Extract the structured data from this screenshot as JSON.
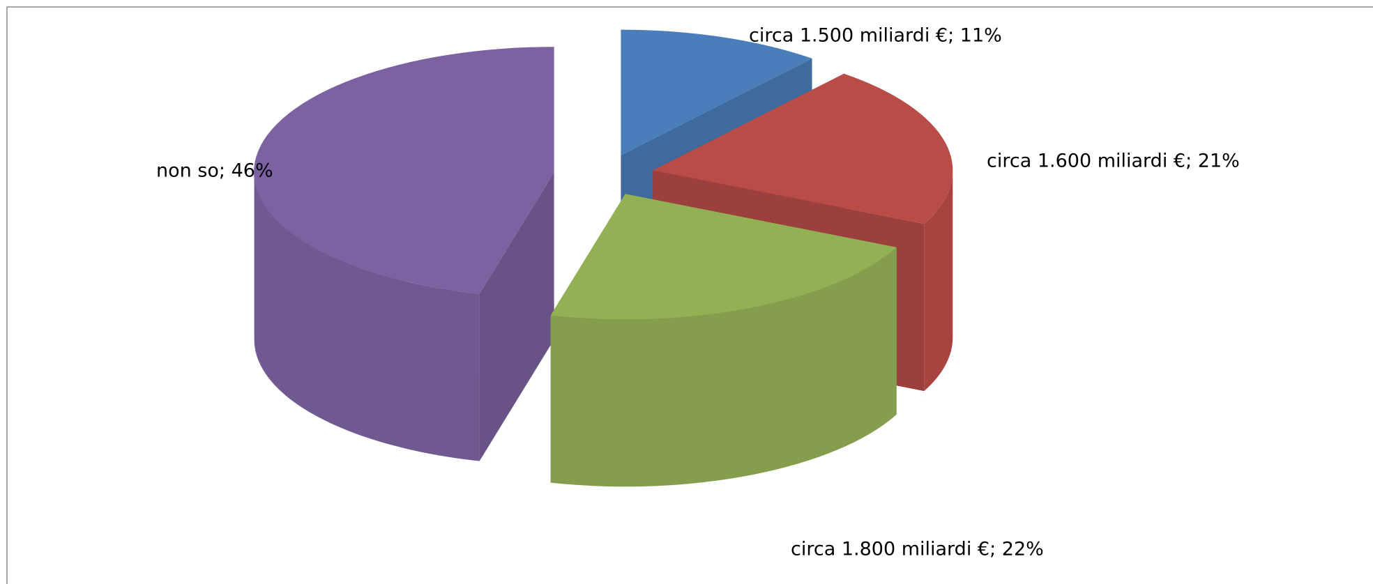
{
  "chart_data": {
    "type": "pie3d",
    "labels": [
      "circa 1.500 miliardi €; 11%",
      "circa 1.600 miliardi €; 21%",
      "circa 1.800 miliardi €; 22%",
      "non so; 46%"
    ],
    "values": [
      11,
      21,
      22,
      46
    ],
    "colors": [
      "#4a7ebb",
      "#b94c47",
      "#93b055",
      "#7c62a0"
    ],
    "exploded": true
  }
}
